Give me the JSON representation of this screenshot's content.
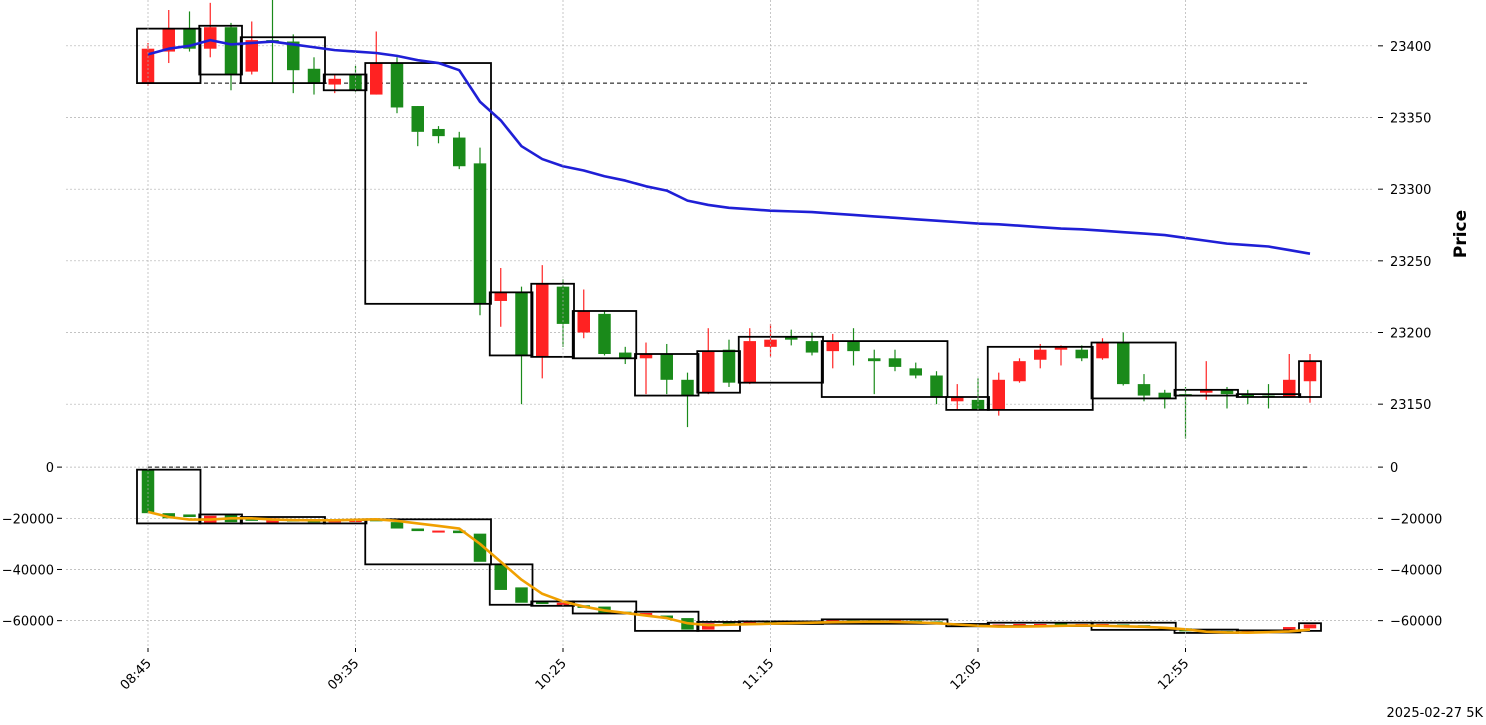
{
  "chart_data": [
    {
      "type": "candlestick",
      "panel": "price",
      "ylabel": "Price",
      "ylim": [
        23125,
        23425
      ],
      "yticks": [
        23150,
        23200,
        23250,
        23300,
        23350,
        23400
      ],
      "grid": true,
      "dashed_reference": 23374,
      "colors": {
        "up": "#1a8a1a",
        "down": "#ff2222",
        "ma": "#1f1fd6",
        "box": "#000000"
      },
      "xtick_labels": [
        "08:45",
        "09:35",
        "10:25",
        "11:15",
        "12:05",
        "12:55"
      ],
      "xtick_index": [
        0,
        10,
        20,
        30,
        40,
        50
      ],
      "candles": [
        {
          "o": 23374,
          "h": 23402,
          "l": 23372,
          "c": 23398,
          "dir": "down"
        },
        {
          "o": 23396,
          "h": 23425,
          "l": 23388,
          "c": 23412,
          "dir": "down"
        },
        {
          "o": 23412,
          "h": 23424,
          "l": 23396,
          "c": 23398,
          "dir": "up"
        },
        {
          "o": 23398,
          "h": 23430,
          "l": 23392,
          "c": 23413,
          "dir": "down"
        },
        {
          "o": 23413,
          "h": 23416,
          "l": 23369,
          "c": 23380,
          "dir": "up"
        },
        {
          "o": 23382,
          "h": 23417,
          "l": 23380,
          "c": 23404,
          "dir": "down"
        },
        {
          "o": 23404,
          "h": 23434,
          "l": 23374,
          "c": 23402,
          "dir": "up"
        },
        {
          "o": 23403,
          "h": 23408,
          "l": 23367,
          "c": 23383,
          "dir": "up"
        },
        {
          "o": 23384,
          "h": 23392,
          "l": 23366,
          "c": 23374,
          "dir": "up"
        },
        {
          "o": 23373,
          "h": 23380,
          "l": 23367,
          "c": 23377,
          "dir": "down"
        },
        {
          "o": 23380,
          "h": 23386,
          "l": 23368,
          "c": 23369,
          "dir": "up"
        },
        {
          "o": 23366,
          "h": 23410,
          "l": 23366,
          "c": 23388,
          "dir": "down"
        },
        {
          "o": 23388,
          "h": 23392,
          "l": 23353,
          "c": 23357,
          "dir": "up"
        },
        {
          "o": 23358,
          "h": 23358,
          "l": 23330,
          "c": 23340,
          "dir": "up"
        },
        {
          "o": 23342,
          "h": 23344,
          "l": 23332,
          "c": 23337,
          "dir": "up"
        },
        {
          "o": 23336,
          "h": 23340,
          "l": 23314,
          "c": 23316,
          "dir": "up"
        },
        {
          "o": 23318,
          "h": 23329,
          "l": 23212,
          "c": 23220,
          "dir": "up"
        },
        {
          "o": 23222,
          "h": 23245,
          "l": 23204,
          "c": 23228,
          "dir": "down"
        },
        {
          "o": 23228,
          "h": 23232,
          "l": 23150,
          "c": 23184,
          "dir": "up"
        },
        {
          "o": 23183,
          "h": 23247,
          "l": 23168,
          "c": 23234,
          "dir": "down"
        },
        {
          "o": 23232,
          "h": 23237,
          "l": 23190,
          "c": 23206,
          "dir": "up"
        },
        {
          "o": 23200,
          "h": 23230,
          "l": 23196,
          "c": 23215,
          "dir": "down"
        },
        {
          "o": 23213,
          "h": 23215,
          "l": 23184,
          "c": 23185,
          "dir": "up"
        },
        {
          "o": 23186,
          "h": 23190,
          "l": 23178,
          "c": 23182,
          "dir": "up"
        },
        {
          "o": 23182,
          "h": 23193,
          "l": 23157,
          "c": 23185,
          "dir": "down"
        },
        {
          "o": 23185,
          "h": 23192,
          "l": 23157,
          "c": 23167,
          "dir": "up"
        },
        {
          "o": 23167,
          "h": 23172,
          "l": 23134,
          "c": 23156,
          "dir": "up"
        },
        {
          "o": 23158,
          "h": 23203,
          "l": 23157,
          "c": 23187,
          "dir": "down"
        },
        {
          "o": 23188,
          "h": 23195,
          "l": 23162,
          "c": 23165,
          "dir": "up"
        },
        {
          "o": 23165,
          "h": 23203,
          "l": 23164,
          "c": 23194,
          "dir": "down"
        },
        {
          "o": 23190,
          "h": 23206,
          "l": 23183,
          "c": 23195,
          "dir": "down"
        },
        {
          "o": 23197,
          "h": 23202,
          "l": 23191,
          "c": 23195,
          "dir": "up"
        },
        {
          "o": 23194,
          "h": 23200,
          "l": 23184,
          "c": 23186,
          "dir": "up"
        },
        {
          "o": 23187,
          "h": 23199,
          "l": 23175,
          "c": 23194,
          "dir": "down"
        },
        {
          "o": 23194,
          "h": 23203,
          "l": 23177,
          "c": 23187,
          "dir": "up"
        },
        {
          "o": 23182,
          "h": 23188,
          "l": 23157,
          "c": 23180,
          "dir": "up"
        },
        {
          "o": 23182,
          "h": 23188,
          "l": 23173,
          "c": 23176,
          "dir": "up"
        },
        {
          "o": 23175,
          "h": 23179,
          "l": 23168,
          "c": 23170,
          "dir": "up"
        },
        {
          "o": 23170,
          "h": 23173,
          "l": 23150,
          "c": 23155,
          "dir": "up"
        },
        {
          "o": 23152,
          "h": 23164,
          "l": 23146,
          "c": 23155,
          "dir": "down"
        },
        {
          "o": 23153,
          "h": 23168,
          "l": 23146,
          "c": 23146,
          "dir": "up"
        },
        {
          "o": 23146,
          "h": 23172,
          "l": 23142,
          "c": 23167,
          "dir": "down"
        },
        {
          "o": 23166,
          "h": 23182,
          "l": 23165,
          "c": 23180,
          "dir": "down"
        },
        {
          "o": 23181,
          "h": 23192,
          "l": 23175,
          "c": 23188,
          "dir": "down"
        },
        {
          "o": 23188,
          "h": 23191,
          "l": 23177,
          "c": 23190,
          "dir": "down"
        },
        {
          "o": 23188,
          "h": 23191,
          "l": 23180,
          "c": 23182,
          "dir": "up"
        },
        {
          "o": 23182,
          "h": 23196,
          "l": 23181,
          "c": 23193,
          "dir": "down"
        },
        {
          "o": 23193,
          "h": 23200,
          "l": 23163,
          "c": 23164,
          "dir": "up"
        },
        {
          "o": 23164,
          "h": 23171,
          "l": 23152,
          "c": 23156,
          "dir": "up"
        },
        {
          "o": 23158,
          "h": 23160,
          "l": 23147,
          "c": 23154,
          "dir": "up"
        },
        {
          "o": 23157,
          "h": 23162,
          "l": 23126,
          "c": 23157,
          "dir": "up"
        },
        {
          "o": 23158,
          "h": 23180,
          "l": 23153,
          "c": 23160,
          "dir": "down"
        },
        {
          "o": 23160,
          "h": 23162,
          "l": 23147,
          "c": 23157,
          "dir": "up"
        },
        {
          "o": 23157,
          "h": 23160,
          "l": 23150,
          "c": 23155,
          "dir": "up"
        },
        {
          "o": 23156,
          "h": 23164,
          "l": 23147,
          "c": 23155,
          "dir": "up"
        },
        {
          "o": 23155,
          "h": 23185,
          "l": 23155,
          "c": 23167,
          "dir": "down"
        },
        {
          "o": 23166,
          "h": 23185,
          "l": 23151,
          "c": 23180,
          "dir": "down"
        }
      ],
      "ma_line": [
        23394,
        23398,
        23400,
        23404,
        23401,
        23402,
        23403,
        23401,
        23399,
        23397,
        23396,
        23395,
        23393,
        23390,
        23388,
        23383,
        23361,
        23348,
        23330,
        23321,
        23316,
        23313,
        23309,
        23306,
        23302,
        23299,
        23292,
        23289,
        23287,
        23286,
        23285,
        23284.5,
        23284,
        23283,
        23282,
        23281,
        23280,
        23279,
        23278,
        23277,
        23276,
        23275.5,
        23274.5,
        23273.5,
        23272.5,
        23272,
        23271,
        23270,
        23269,
        23268,
        23266,
        23264,
        23262,
        23261,
        23260,
        23257.5,
        23255
      ],
      "boxes": [
        {
          "i0": 0,
          "i1": 2,
          "hi": 23412,
          "lo": 23374
        },
        {
          "i0": 3,
          "i1": 4,
          "hi": 23414,
          "lo": 23380
        },
        {
          "i0": 5,
          "i1": 8,
          "hi": 23406,
          "lo": 23374
        },
        {
          "i0": 9,
          "i1": 10,
          "hi": 23380,
          "lo": 23369
        },
        {
          "i0": 11,
          "i1": 16,
          "hi": 23388,
          "lo": 23220
        },
        {
          "i0": 17,
          "i1": 18,
          "hi": 23228,
          "lo": 23184
        },
        {
          "i0": 19,
          "i1": 20,
          "hi": 23234,
          "lo": 23183
        },
        {
          "i0": 21,
          "i1": 23,
          "hi": 23215,
          "lo": 23182
        },
        {
          "i0": 24,
          "i1": 26,
          "hi": 23185,
          "lo": 23156
        },
        {
          "i0": 27,
          "i1": 28,
          "hi": 23187,
          "lo": 23158
        },
        {
          "i0": 29,
          "i1": 32,
          "hi": 23197,
          "lo": 23165
        },
        {
          "i0": 33,
          "i1": 38,
          "hi": 23194,
          "lo": 23155
        },
        {
          "i0": 39,
          "i1": 40,
          "hi": 23155,
          "lo": 23146
        },
        {
          "i0": 41,
          "i1": 45,
          "hi": 23190,
          "lo": 23146
        },
        {
          "i0": 46,
          "i1": 49,
          "hi": 23193,
          "lo": 23154
        },
        {
          "i0": 50,
          "i1": 52,
          "hi": 23160,
          "lo": 23156
        },
        {
          "i0": 53,
          "i1": 55,
          "hi": 23157,
          "lo": 23155
        },
        {
          "i0": 56,
          "i1": 56,
          "hi": 23180,
          "lo": 23155
        }
      ]
    },
    {
      "type": "candlestick",
      "panel": "indicator",
      "ylim": [
        -66000,
        2000
      ],
      "yticks": [
        0,
        -20000,
        -40000,
        -60000
      ],
      "ytick_labels": [
        "0",
        "−20000",
        "−40000",
        "−60000"
      ],
      "grid": true,
      "dashed_reference": 0,
      "colors": {
        "up": "#1a8a1a",
        "down": "#ff2222",
        "line": "#f0a000",
        "box": "#000000"
      },
      "candles": [
        {
          "o": -1000,
          "c": -18000,
          "dir": "up"
        },
        {
          "o": -18000,
          "c": -20000,
          "dir": "up"
        },
        {
          "o": -19500,
          "c": -18500,
          "dir": "up"
        },
        {
          "o": -19000,
          "c": -22000,
          "dir": "down"
        },
        {
          "o": -18500,
          "c": -21500,
          "dir": "up"
        },
        {
          "o": -20000,
          "c": -21000,
          "dir": "up"
        },
        {
          "o": -20000,
          "c": -22000,
          "dir": "down"
        },
        {
          "o": -20500,
          "c": -21200,
          "dir": "up"
        },
        {
          "o": -20800,
          "c": -21500,
          "dir": "up"
        },
        {
          "o": -20800,
          "c": -21500,
          "dir": "down"
        },
        {
          "o": -20700,
          "c": -21200,
          "dir": "down"
        },
        {
          "o": -20800,
          "c": -20400,
          "dir": "up"
        },
        {
          "o": -21500,
          "c": -24000,
          "dir": "up"
        },
        {
          "o": -24000,
          "c": -25000,
          "dir": "up"
        },
        {
          "o": -24800,
          "c": -25200,
          "dir": "down"
        },
        {
          "o": -24800,
          "c": -25800,
          "dir": "up"
        },
        {
          "o": -26000,
          "c": -37000,
          "dir": "up"
        },
        {
          "o": -38000,
          "c": -48000,
          "dir": "up"
        },
        {
          "o": -47000,
          "c": -53000,
          "dir": "up"
        },
        {
          "o": -52500,
          "c": -53500,
          "dir": "up"
        },
        {
          "o": -53000,
          "c": -54000,
          "dir": "down"
        },
        {
          "o": -54000,
          "c": -55000,
          "dir": "up"
        },
        {
          "o": -54500,
          "c": -57000,
          "dir": "up"
        },
        {
          "o": -56500,
          "c": -57200,
          "dir": "up"
        },
        {
          "o": -57000,
          "c": -57500,
          "dir": "down"
        },
        {
          "o": -58000,
          "c": -59000,
          "dir": "up"
        },
        {
          "o": -59000,
          "c": -63500,
          "dir": "up"
        },
        {
          "o": -61000,
          "c": -63500,
          "dir": "down"
        },
        {
          "o": -60500,
          "c": -61500,
          "dir": "up"
        },
        {
          "o": -60500,
          "c": -61300,
          "dir": "down"
        },
        {
          "o": -60500,
          "c": -61000,
          "dir": "up"
        },
        {
          "o": -60300,
          "c": -60800,
          "dir": "up"
        },
        {
          "o": -60300,
          "c": -60800,
          "dir": "up"
        },
        {
          "o": -59500,
          "c": -60500,
          "dir": "down"
        },
        {
          "o": -59800,
          "c": -60400,
          "dir": "up"
        },
        {
          "o": -59800,
          "c": -60400,
          "dir": "up"
        },
        {
          "o": -59800,
          "c": -60400,
          "dir": "down"
        },
        {
          "o": -60000,
          "c": -60500,
          "dir": "up"
        },
        {
          "o": -60300,
          "c": -61200,
          "dir": "up"
        },
        {
          "o": -61200,
          "c": -62000,
          "dir": "up"
        },
        {
          "o": -61500,
          "c": -62200,
          "dir": "up"
        },
        {
          "o": -61500,
          "c": -62000,
          "dir": "down"
        },
        {
          "o": -61300,
          "c": -61800,
          "dir": "down"
        },
        {
          "o": -61300,
          "c": -61800,
          "dir": "down"
        },
        {
          "o": -61000,
          "c": -61800,
          "dir": "up"
        },
        {
          "o": -61300,
          "c": -61700,
          "dir": "down"
        },
        {
          "o": -61300,
          "c": -61800,
          "dir": "down"
        },
        {
          "o": -61500,
          "c": -62300,
          "dir": "up"
        },
        {
          "o": -61800,
          "c": -62600,
          "dir": "up"
        },
        {
          "o": -62500,
          "c": -63000,
          "dir": "up"
        },
        {
          "o": -63000,
          "c": -64200,
          "dir": "up"
        },
        {
          "o": -64000,
          "c": -64500,
          "dir": "down"
        },
        {
          "o": -64000,
          "c": -64500,
          "dir": "up"
        },
        {
          "o": -64000,
          "c": -64400,
          "dir": "down"
        },
        {
          "o": -63800,
          "c": -64200,
          "dir": "up"
        },
        {
          "o": -62500,
          "c": -63500,
          "dir": "down"
        },
        {
          "o": -61500,
          "c": -63000,
          "dir": "down"
        }
      ],
      "line": [
        -17500,
        -19500,
        -20500,
        -20500,
        -20000,
        -20000,
        -20500,
        -20700,
        -20800,
        -20800,
        -20600,
        -20400,
        -21000,
        -22000,
        -23000,
        -24000,
        -30000,
        -37000,
        -44000,
        -49500,
        -52500,
        -54500,
        -56000,
        -57000,
        -58000,
        -59000,
        -61000,
        -61800,
        -61600,
        -61400,
        -61200,
        -61000,
        -60800,
        -60600,
        -60500,
        -60400,
        -60500,
        -60700,
        -61000,
        -61500,
        -62000,
        -62300,
        -62300,
        -62200,
        -62000,
        -61900,
        -62000,
        -62200,
        -62400,
        -62800,
        -63400,
        -64300,
        -64600,
        -64700,
        -64500,
        -64200,
        -63500
      ],
      "boxes": [
        {
          "i0": 0,
          "i1": 2,
          "hi": -1000,
          "lo": -22000
        },
        {
          "i0": 3,
          "i1": 4,
          "hi": -18500,
          "lo": -22000
        },
        {
          "i0": 5,
          "i1": 8,
          "hi": -19500,
          "lo": -22000
        },
        {
          "i0": 9,
          "i1": 10,
          "hi": -20700,
          "lo": -22000
        },
        {
          "i0": 11,
          "i1": 16,
          "hi": -20400,
          "lo": -38000
        },
        {
          "i0": 17,
          "i1": 18,
          "hi": -38000,
          "lo": -53800
        },
        {
          "i0": 19,
          "i1": 20,
          "hi": -52500,
          "lo": -54200
        },
        {
          "i0": 21,
          "i1": 23,
          "hi": -52500,
          "lo": -57200
        },
        {
          "i0": 24,
          "i1": 26,
          "hi": -56500,
          "lo": -64000
        },
        {
          "i0": 27,
          "i1": 28,
          "hi": -60500,
          "lo": -64000
        },
        {
          "i0": 29,
          "i1": 32,
          "hi": -60300,
          "lo": -61300
        },
        {
          "i0": 33,
          "i1": 38,
          "hi": -59500,
          "lo": -61200
        },
        {
          "i0": 39,
          "i1": 40,
          "hi": -61300,
          "lo": -62200
        },
        {
          "i0": 41,
          "i1": 45,
          "hi": -60800,
          "lo": -62100
        },
        {
          "i0": 46,
          "i1": 49,
          "hi": -60800,
          "lo": -63600
        },
        {
          "i0": 50,
          "i1": 52,
          "hi": -63500,
          "lo": -64800
        },
        {
          "i0": 53,
          "i1": 55,
          "hi": -63800,
          "lo": -64600
        },
        {
          "i0": 56,
          "i1": 56,
          "hi": -61000,
          "lo": -64000
        }
      ]
    }
  ],
  "footer_label": "2025-02-27 5K"
}
